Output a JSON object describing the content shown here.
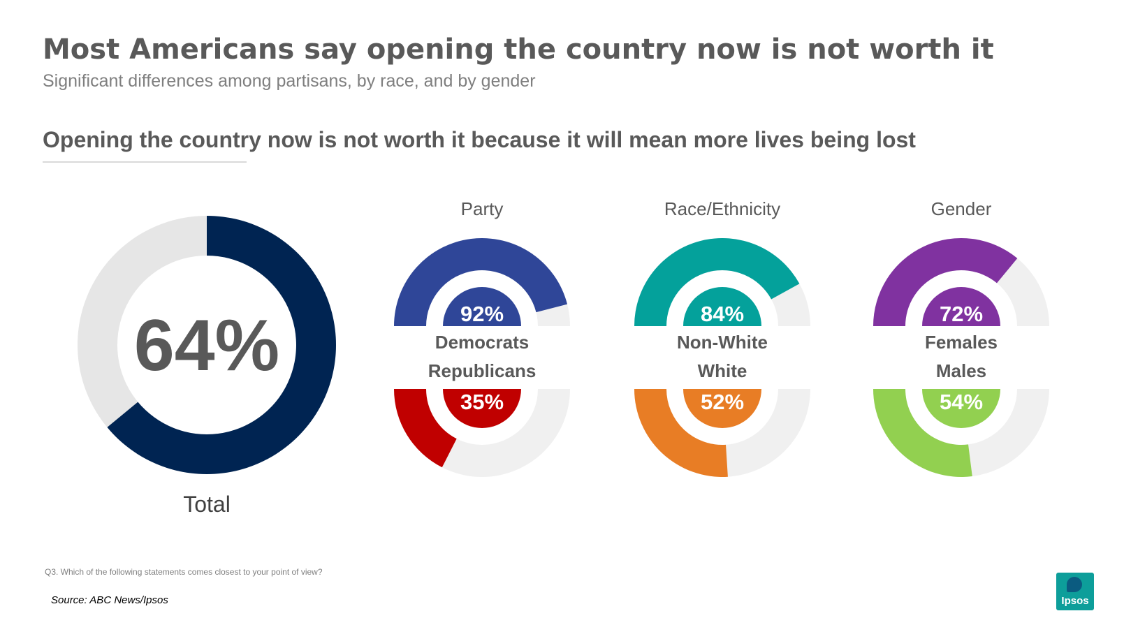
{
  "header": {
    "title": "Most Americans say opening the country now is not worth it",
    "subtitle": "Significant differences among partisans, by race, and by gender",
    "question": "Opening the country now is not worth it because it will mean more lives being lost"
  },
  "footer": {
    "note": "Q3. Which of the following statements comes closest to your point of view?",
    "source": "Source: ABC News/Ipsos",
    "logo_text": "Ipsos"
  },
  "colors": {
    "track": "#f0f0f0",
    "total_track": "#e6e6e6",
    "total": "#002452",
    "democrats": "#2f4698",
    "republicans": "#c00000",
    "nonwhite": "#04a19b",
    "white": "#e87d25",
    "females": "#8032a0",
    "males": "#92d050",
    "value_text": "#595959"
  },
  "chart_data": [
    {
      "type": "pie",
      "variant": "donut",
      "group": "Total",
      "title": "Total",
      "series": [
        {
          "name": "Total",
          "value": 64,
          "label": "64%",
          "color_key": "total"
        }
      ]
    },
    {
      "type": "pie",
      "variant": "split-donut",
      "group": "Party",
      "title": "Party",
      "series": [
        {
          "name": "Democrats",
          "value": 92,
          "label": "92%",
          "color_key": "democrats"
        },
        {
          "name": "Republicans",
          "value": 35,
          "label": "35%",
          "color_key": "republicans"
        }
      ]
    },
    {
      "type": "pie",
      "variant": "split-donut",
      "group": "Race/Ethnicity",
      "title": "Race/Ethnicity",
      "series": [
        {
          "name": "Non-White",
          "value": 84,
          "label": "84%",
          "color_key": "nonwhite"
        },
        {
          "name": "White",
          "value": 52,
          "label": "52%",
          "color_key": "white"
        }
      ]
    },
    {
      "type": "pie",
      "variant": "split-donut",
      "group": "Gender",
      "title": "Gender",
      "series": [
        {
          "name": "Females",
          "value": 72,
          "label": "72%",
          "color_key": "females"
        },
        {
          "name": "Males",
          "value": 54,
          "label": "54%",
          "color_key": "males"
        }
      ]
    }
  ]
}
